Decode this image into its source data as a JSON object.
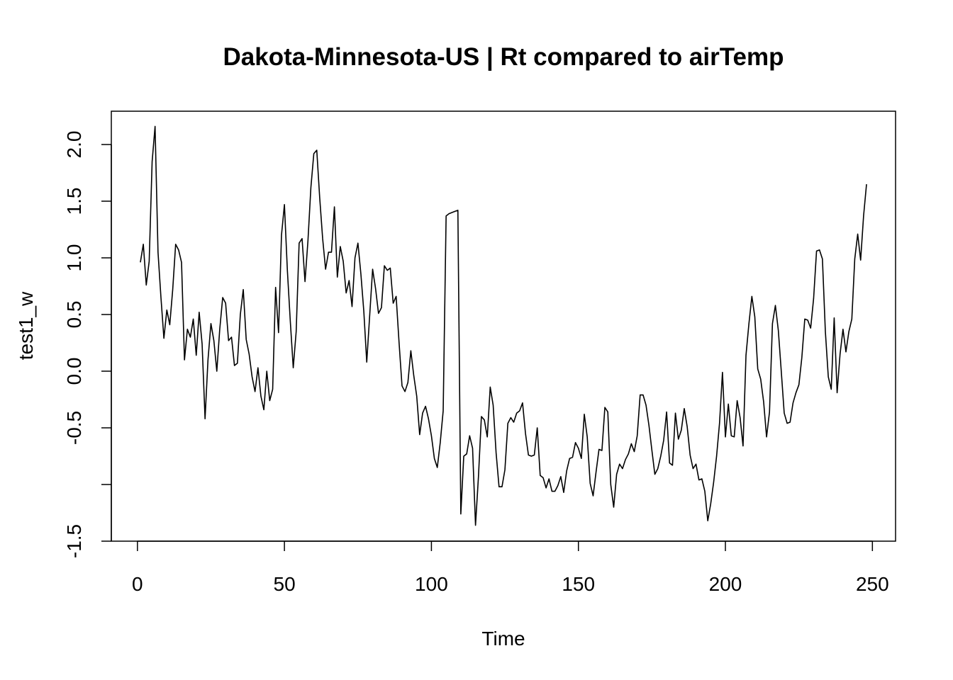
{
  "chart_data": {
    "type": "line",
    "title": "Dakota-Minnesota-US | Rt compared to airTemp",
    "x_label": "Time",
    "y_label": "test1_w",
    "x": [
      1,
      2,
      3,
      4,
      5,
      6,
      7,
      8,
      9,
      10,
      11,
      12,
      13,
      14,
      15,
      16,
      17,
      18,
      19,
      20,
      21,
      22,
      23,
      24,
      25,
      26,
      27,
      28,
      29,
      30,
      31,
      32,
      33,
      34,
      35,
      36,
      37,
      38,
      39,
      40,
      41,
      42,
      43,
      44,
      45,
      46,
      47,
      48,
      49,
      50,
      51,
      52,
      53,
      54,
      55,
      56,
      57,
      58,
      59,
      60,
      61,
      62,
      63,
      64,
      65,
      66,
      67,
      68,
      69,
      70,
      71,
      72,
      73,
      74,
      75,
      76,
      77,
      78,
      79,
      80,
      81,
      82,
      83,
      84,
      85,
      86,
      87,
      88,
      89,
      90,
      91,
      92,
      93,
      94,
      95,
      96,
      97,
      98,
      99,
      100,
      101,
      102,
      103,
      104,
      105,
      106,
      107,
      108,
      109,
      110,
      111,
      112,
      113,
      114,
      115,
      116,
      117,
      118,
      119,
      120,
      121,
      122,
      123,
      124,
      125,
      126,
      127,
      128,
      129,
      130,
      131,
      132,
      133,
      134,
      135,
      136,
      137,
      138,
      139,
      140,
      141,
      142,
      143,
      144,
      145,
      146,
      147,
      148,
      149,
      150,
      151,
      152,
      153,
      154,
      155,
      156,
      157,
      158,
      159,
      160,
      161,
      162,
      163,
      164,
      165,
      166,
      167,
      168,
      169,
      170,
      171,
      172,
      173,
      174,
      175,
      176,
      177,
      178,
      179,
      180,
      181,
      182,
      183,
      184,
      185,
      186,
      187,
      188,
      189,
      190,
      191,
      192,
      193,
      194,
      195,
      196,
      197,
      198,
      199,
      200,
      201,
      202,
      203,
      204,
      205,
      206,
      207,
      208,
      209,
      210,
      211,
      212,
      213,
      214,
      215,
      216,
      217,
      218,
      219,
      220,
      221,
      222,
      223,
      224,
      225,
      226,
      227,
      228,
      229,
      230,
      231,
      232,
      233,
      234,
      235,
      236,
      237,
      238,
      239,
      240,
      241,
      242,
      243,
      244,
      245,
      246,
      247,
      248
    ],
    "series": [
      {
        "color": "#000000",
        "values": [
          0.96,
          1.12,
          0.76,
          0.97,
          1.85,
          2.16,
          1.05,
          0.65,
          0.29,
          0.54,
          0.41,
          0.72,
          1.12,
          1.07,
          0.96,
          0.1,
          0.37,
          0.3,
          0.46,
          0.14,
          0.52,
          0.24,
          -0.42,
          0.1,
          0.42,
          0.27,
          0.0,
          0.37,
          0.65,
          0.6,
          0.27,
          0.3,
          0.05,
          0.07,
          0.5,
          0.72,
          0.28,
          0.15,
          -0.05,
          -0.18,
          0.03,
          -0.22,
          -0.34,
          0.0,
          -0.26,
          -0.16,
          0.74,
          0.34,
          1.2,
          1.47,
          0.89,
          0.44,
          0.03,
          0.35,
          1.13,
          1.17,
          0.79,
          1.15,
          1.62,
          1.92,
          1.95,
          1.53,
          1.17,
          0.9,
          1.05,
          1.05,
          1.45,
          0.83,
          1.1,
          0.97,
          0.69,
          0.8,
          0.57,
          1.0,
          1.13,
          0.86,
          0.53,
          0.08,
          0.49,
          0.9,
          0.73,
          0.51,
          0.56,
          0.93,
          0.89,
          0.91,
          0.6,
          0.66,
          0.25,
          -0.13,
          -0.18,
          -0.1,
          0.18,
          -0.04,
          -0.22,
          -0.56,
          -0.37,
          -0.31,
          -0.42,
          -0.57,
          -0.77,
          -0.85,
          -0.63,
          -0.35,
          1.37,
          1.39,
          1.4,
          1.41,
          1.42,
          -1.26,
          -0.75,
          -0.73,
          -0.57,
          -0.68,
          -1.36,
          -0.93,
          -0.4,
          -0.43,
          -0.58,
          -0.14,
          -0.3,
          -0.72,
          -1.02,
          -1.02,
          -0.87,
          -0.46,
          -0.41,
          -0.45,
          -0.37,
          -0.35,
          -0.28,
          -0.55,
          -0.74,
          -0.75,
          -0.74,
          -0.5,
          -0.92,
          -0.94,
          -1.03,
          -0.95,
          -1.06,
          -1.06,
          -1.01,
          -0.93,
          -1.07,
          -0.88,
          -0.77,
          -0.76,
          -0.63,
          -0.68,
          -0.77,
          -0.38,
          -0.58,
          -0.99,
          -1.1,
          -0.89,
          -0.69,
          -0.7,
          -0.32,
          -0.36,
          -1.0,
          -1.2,
          -0.91,
          -0.82,
          -0.86,
          -0.78,
          -0.73,
          -0.64,
          -0.71,
          -0.57,
          -0.21,
          -0.21,
          -0.3,
          -0.48,
          -0.7,
          -0.91,
          -0.86,
          -0.75,
          -0.61,
          -0.36,
          -0.81,
          -0.83,
          -0.37,
          -0.6,
          -0.52,
          -0.33,
          -0.49,
          -0.74,
          -0.86,
          -0.82,
          -0.96,
          -0.95,
          -1.06,
          -1.32,
          -1.17,
          -0.98,
          -0.75,
          -0.46,
          -0.01,
          -0.58,
          -0.29,
          -0.57,
          -0.58,
          -0.26,
          -0.41,
          -0.66,
          0.14,
          0.42,
          0.66,
          0.48,
          0.02,
          -0.07,
          -0.27,
          -0.58,
          -0.36,
          0.42,
          0.58,
          0.36,
          0.0,
          -0.37,
          -0.46,
          -0.45,
          -0.28,
          -0.19,
          -0.12,
          0.12,
          0.46,
          0.45,
          0.38,
          0.64,
          1.06,
          1.07,
          0.99,
          0.35,
          -0.05,
          -0.16,
          0.47,
          -0.19,
          0.15,
          0.37,
          0.17,
          0.35,
          0.46,
          0.99,
          1.21,
          0.98,
          1.37,
          1.65
        ]
      }
    ],
    "xlim": [
      -8.88,
      257.88
    ],
    "ylim": [
      -1.5,
      2.294
    ],
    "xticks": [
      0,
      50,
      100,
      150,
      200,
      250
    ],
    "yticks": [
      {
        "value": -1.5,
        "label": "-1.5"
      },
      {
        "value": -1.0,
        "label": null
      },
      {
        "value": -0.5,
        "label": "-0.5"
      },
      {
        "value": 0,
        "label": "0.0"
      },
      {
        "value": 0.5,
        "label": "0.5"
      },
      {
        "value": 1,
        "label": "1.0"
      },
      {
        "value": 1.5,
        "label": "1.5"
      },
      {
        "value": 2,
        "label": "2.0"
      }
    ]
  }
}
